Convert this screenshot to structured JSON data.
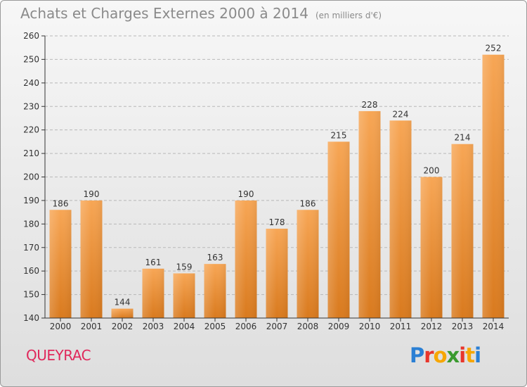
{
  "header": {
    "title": "Achats et Charges Externes 2000 à 2014",
    "unit": "(en milliers d'€)"
  },
  "footer": {
    "commune": "QUEYRAC",
    "brand": "Proxiti",
    "brand_colors": [
      "#2a7fd4",
      "#e8362c",
      "#f7a600",
      "#3a9a2f",
      "#e8362c",
      "#f7a600",
      "#2a7fd4"
    ]
  },
  "colors": {
    "bar_top": "#f7a655",
    "bar_bottom": "#d97a1e",
    "grid": "#b8b8b8",
    "axis": "#333333",
    "text": "#333333",
    "title": "#8a8a8a",
    "commune": "#e0285b"
  },
  "chart_data": {
    "type": "bar",
    "title": "Achats et Charges Externes 2000 à 2014",
    "subtitle": "(en milliers d'€)",
    "categories": [
      "2000",
      "2001",
      "2002",
      "2003",
      "2004",
      "2005",
      "2006",
      "2007",
      "2008",
      "2009",
      "2010",
      "2011",
      "2012",
      "2013",
      "2014"
    ],
    "values": [
      186,
      190,
      144,
      161,
      159,
      163,
      190,
      178,
      186,
      215,
      228,
      224,
      200,
      214,
      252
    ],
    "ylim": [
      140,
      260
    ],
    "yticks": [
      140,
      150,
      160,
      170,
      180,
      190,
      200,
      210,
      220,
      230,
      240,
      250,
      260
    ],
    "grid": true,
    "xlabel": "",
    "ylabel": ""
  }
}
